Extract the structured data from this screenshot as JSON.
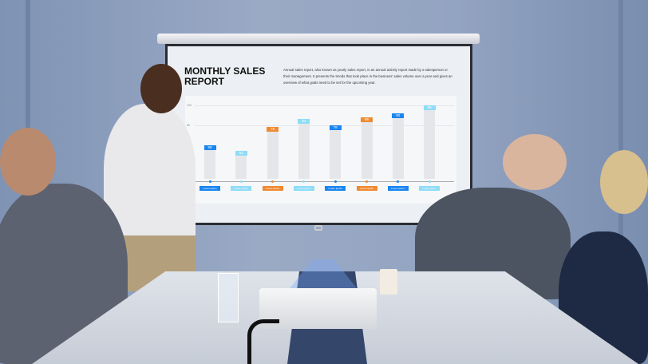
{
  "slide": {
    "title": "MONTHLY SALES REPORT",
    "description": "Annual sales report, also known as yearly sales report, is an annual activity report made by a salesperson or their management. It presents the trends that took place in the business' sales volume over a year and gives an overview of what goals need to be set for the upcoming year."
  },
  "chart_data": {
    "type": "bar",
    "categories": [
      "Lorem ipsum",
      "Lorem ipsum",
      "Lorem ipsum",
      "Lorem ipsum",
      "Lorem ipsum",
      "Lorem ipsum",
      "Lorem ipsum",
      "Lorem ipsum"
    ],
    "values": [
      58,
      52,
      76,
      84,
      78,
      86,
      90,
      98
    ],
    "label_colors": [
      "#1a85f0",
      "#8fdcf7",
      "#f08a32",
      "#8fdcf7",
      "#1a85f0",
      "#f08a32",
      "#1a85f0",
      "#8fdcf7"
    ],
    "y_ticks": [
      "100",
      "80"
    ],
    "grid": true
  },
  "colors": {
    "wall": "#8d9fbd",
    "bar": "#e4e6e9",
    "blue": "#1a85f0",
    "orange": "#f08a32",
    "light_blue": "#8fdcf7"
  }
}
